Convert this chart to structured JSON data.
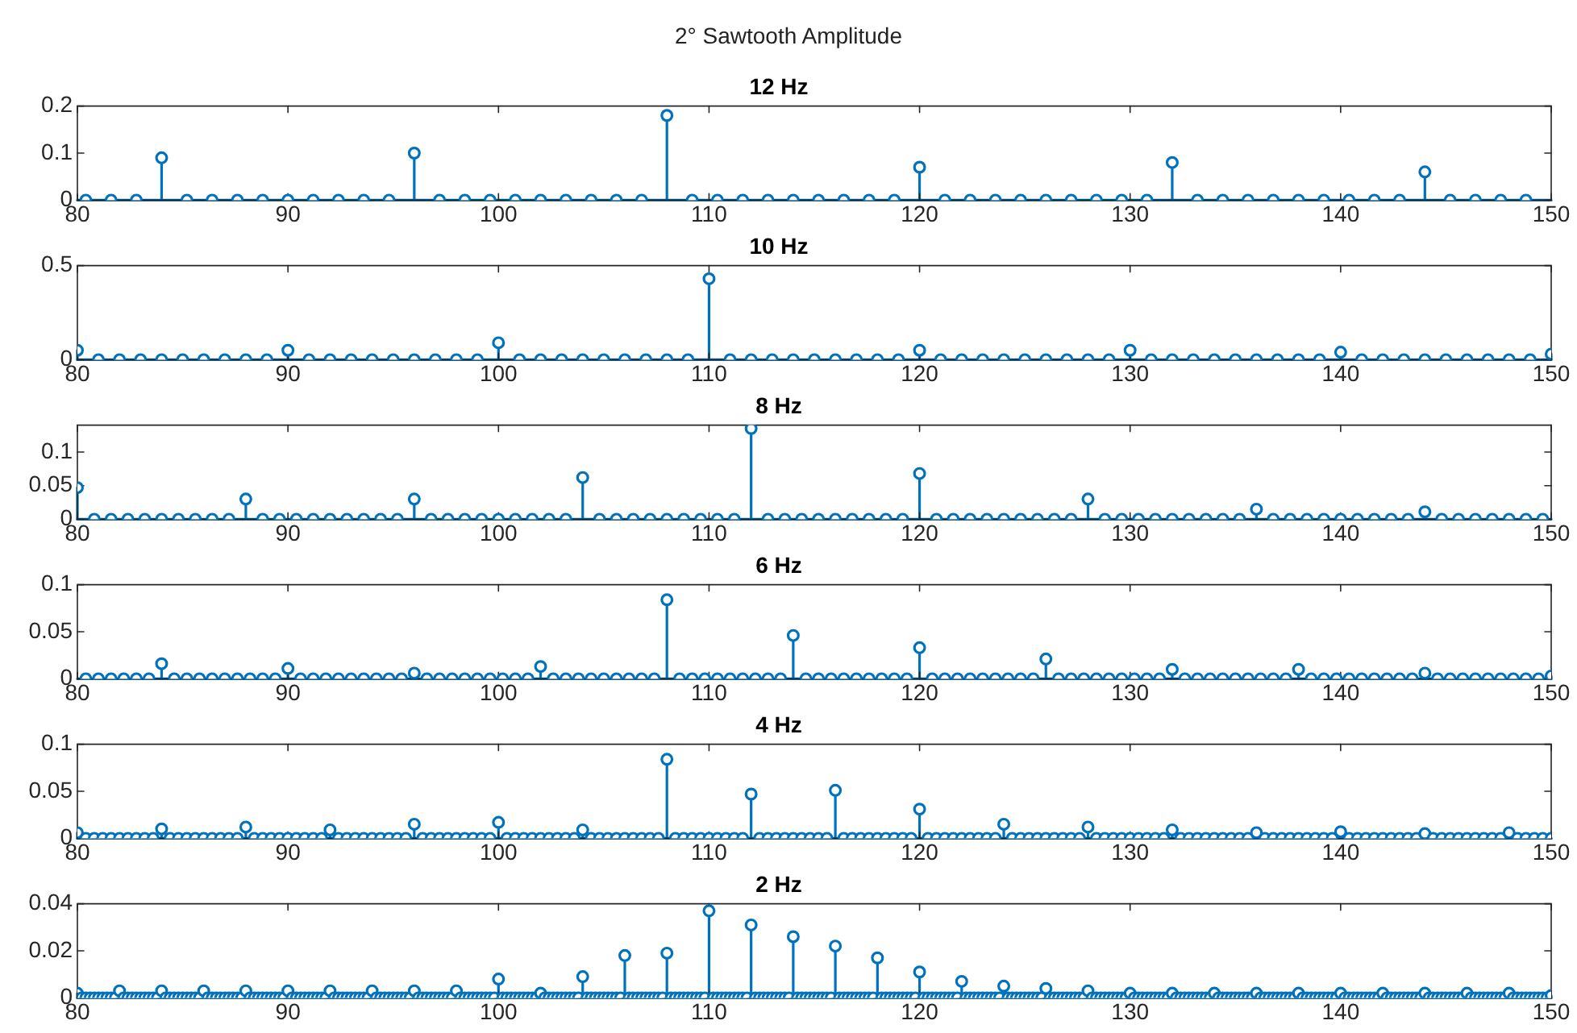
{
  "chart_data": [
    {
      "type": "lollipop",
      "title": "12 Hz",
      "annotations": [
        "2° Sawtooth Amplitude"
      ],
      "color": "#0072bd",
      "marker": "circle",
      "xlim": [
        80,
        150
      ],
      "xticks": [
        80,
        90,
        100,
        110,
        120,
        130,
        140,
        150
      ],
      "ylim": [
        0,
        0.2
      ],
      "yticks": [
        0,
        0.1,
        0.2
      ],
      "x": [
        80.4,
        81.6,
        82.8,
        84,
        85.2,
        86.4,
        87.6,
        88.8,
        90,
        91.2,
        92.4,
        93.6,
        94.8,
        96,
        97.2,
        98.4,
        99.6,
        100.8,
        102,
        103.2,
        104.4,
        105.6,
        106.8,
        108,
        109.2,
        110.4,
        111.6,
        112.8,
        114,
        115.2,
        116.4,
        117.6,
        118.8,
        120,
        121.2,
        122.4,
        123.6,
        124.8,
        126,
        127.2,
        128.4,
        129.6,
        130.8,
        132,
        133.2,
        134.4,
        135.6,
        136.8,
        138,
        139.2,
        140.4,
        141.6,
        142.8,
        144,
        145.2,
        146.4,
        147.6,
        148.8
      ],
      "values": [
        0,
        0,
        0,
        0.09,
        0,
        0,
        0,
        0,
        0,
        0,
        0,
        0,
        0,
        0.1,
        0,
        0,
        0,
        0,
        0,
        0,
        0,
        0,
        0,
        0.18,
        0,
        0,
        0,
        0,
        0,
        0,
        0,
        0,
        0,
        0.07,
        0,
        0,
        0,
        0,
        0,
        0,
        0,
        0,
        0,
        0.08,
        0,
        0,
        0,
        0,
        0,
        0,
        0,
        0,
        0,
        0.06,
        0,
        0,
        0,
        0
      ]
    },
    {
      "type": "lollipop",
      "title": "10 Hz",
      "color": "#0072bd",
      "marker": "circle",
      "xlim": [
        80,
        150
      ],
      "xticks": [
        80,
        90,
        100,
        110,
        120,
        130,
        140,
        150
      ],
      "ylim": [
        0,
        0.5
      ],
      "yticks": [
        0,
        0.5
      ],
      "x": [
        80,
        81,
        82,
        83,
        84,
        85,
        86,
        87,
        88,
        89,
        90,
        91,
        92,
        93,
        94,
        95,
        96,
        97,
        98,
        99,
        100,
        101,
        102,
        103,
        104,
        105,
        106,
        107,
        108,
        109,
        110,
        111,
        112,
        113,
        114,
        115,
        116,
        117,
        118,
        119,
        120,
        121,
        122,
        123,
        124,
        125,
        126,
        127,
        128,
        129,
        130,
        131,
        132,
        133,
        134,
        135,
        136,
        137,
        138,
        139,
        140,
        141,
        142,
        143,
        144,
        145,
        146,
        147,
        148,
        149,
        150
      ],
      "values": [
        0.05,
        0,
        0,
        0,
        0,
        0,
        0,
        0,
        0,
        0,
        0.05,
        0,
        0,
        0,
        0,
        0,
        0,
        0,
        0,
        0,
        0.09,
        0,
        0,
        0,
        0,
        0,
        0,
        0,
        0,
        0,
        0.43,
        0,
        0,
        0,
        0,
        0,
        0,
        0,
        0,
        0,
        0.05,
        0,
        0,
        0,
        0,
        0,
        0,
        0,
        0,
        0,
        0.05,
        0,
        0,
        0,
        0,
        0,
        0,
        0,
        0,
        0,
        0.04,
        0,
        0,
        0,
        0,
        0,
        0,
        0,
        0,
        0,
        0.03
      ]
    },
    {
      "type": "lollipop",
      "title": "8 Hz",
      "color": "#0072bd",
      "marker": "circle",
      "xlim": [
        80,
        150
      ],
      "xticks": [
        80,
        90,
        100,
        110,
        120,
        130,
        140,
        150
      ],
      "ylim": [
        0,
        0.14
      ],
      "yticks": [
        0,
        0.05,
        0.1
      ],
      "x": [
        80,
        80.8,
        81.6,
        82.4,
        83.2,
        84,
        84.8,
        85.6,
        86.4,
        87.2,
        88,
        88.8,
        89.6,
        90.4,
        91.2,
        92,
        92.8,
        93.6,
        94.4,
        95.2,
        96,
        96.8,
        97.6,
        98.4,
        99.2,
        100,
        100.8,
        101.6,
        102.4,
        103.2,
        104,
        104.8,
        105.6,
        106.4,
        107.2,
        108,
        108.8,
        109.6,
        110.4,
        111.2,
        112,
        112.8,
        113.6,
        114.4,
        115.2,
        116,
        116.8,
        117.6,
        118.4,
        119.2,
        120,
        120.8,
        121.6,
        122.4,
        123.2,
        124,
        124.8,
        125.6,
        126.4,
        127.2,
        128,
        128.8,
        129.6,
        130.4,
        131.2,
        132,
        132.8,
        133.6,
        134.4,
        135.2,
        136,
        136.8,
        137.6,
        138.4,
        139.2,
        140,
        140.8,
        141.6,
        142.4,
        143.2,
        144,
        144.8,
        145.6,
        146.4,
        147.2,
        148,
        148.8,
        149.6
      ],
      "values": [
        0.047,
        0,
        0,
        0,
        0,
        0,
        0,
        0,
        0,
        0,
        0.03,
        0,
        0,
        0,
        0,
        0,
        0,
        0,
        0,
        0,
        0.03,
        0,
        0,
        0,
        0,
        0,
        0,
        0,
        0,
        0,
        0.062,
        0,
        0,
        0,
        0,
        0,
        0,
        0,
        0,
        0,
        0.135,
        0,
        0,
        0,
        0,
        0,
        0,
        0,
        0,
        0,
        0.068,
        0,
        0,
        0,
        0,
        0,
        0,
        0,
        0,
        0,
        0.03,
        0,
        0,
        0,
        0,
        0,
        0,
        0,
        0,
        0,
        0.015,
        0,
        0,
        0,
        0,
        0,
        0,
        0,
        0,
        0,
        0.011,
        0,
        0,
        0,
        0,
        0,
        0,
        0
      ]
    },
    {
      "type": "lollipop",
      "title": "6 Hz",
      "color": "#0072bd",
      "marker": "circle",
      "xlim": [
        80,
        150
      ],
      "xticks": [
        80,
        90,
        100,
        110,
        120,
        130,
        140,
        150
      ],
      "ylim": [
        0,
        0.1
      ],
      "yticks": [
        0,
        0.05,
        0.1
      ],
      "x": [
        80.4,
        81,
        81.6,
        82.2,
        82.8,
        83.4,
        84,
        84.6,
        85.2,
        85.8,
        86.4,
        87,
        87.6,
        88.2,
        88.8,
        89.4,
        90,
        90.6,
        91.2,
        91.8,
        92.4,
        93,
        93.6,
        94.2,
        94.8,
        95.4,
        96,
        96.6,
        97.2,
        97.8,
        98.4,
        99,
        99.6,
        100.2,
        100.8,
        101.4,
        102,
        102.6,
        103.2,
        103.8,
        104.4,
        105,
        105.6,
        106.2,
        106.8,
        107.4,
        108,
        108.6,
        109.2,
        109.8,
        110.4,
        111,
        111.6,
        112.2,
        112.8,
        113.4,
        114,
        114.6,
        115.2,
        115.8,
        116.4,
        117,
        117.6,
        118.2,
        118.8,
        119.4,
        120,
        120.6,
        121.2,
        121.8,
        122.4,
        123,
        123.6,
        124.2,
        124.8,
        125.4,
        126,
        126.6,
        127.2,
        127.8,
        128.4,
        129,
        129.6,
        130.2,
        130.8,
        131.4,
        132,
        132.6,
        133.2,
        133.8,
        134.4,
        135,
        135.6,
        136.2,
        136.8,
        137.4,
        138,
        138.6,
        139.2,
        139.8,
        140.4,
        141,
        141.6,
        142.2,
        142.8,
        143.4,
        144,
        144.6,
        145.2,
        145.8,
        146.4,
        147,
        147.6,
        148.2,
        148.8,
        149.4,
        150
      ],
      "values": [
        0,
        0,
        0,
        0,
        0,
        0,
        0.016,
        0,
        0,
        0,
        0,
        0,
        0,
        0,
        0,
        0,
        0.011,
        0,
        0,
        0,
        0,
        0,
        0,
        0,
        0,
        0,
        0.006,
        0,
        0,
        0,
        0,
        0,
        0,
        0,
        0,
        0,
        0.013,
        0,
        0,
        0,
        0,
        0,
        0,
        0,
        0,
        0,
        0.084,
        0,
        0,
        0,
        0,
        0,
        0,
        0,
        0,
        0,
        0.046,
        0,
        0,
        0,
        0,
        0,
        0,
        0,
        0,
        0,
        0.033,
        0,
        0,
        0,
        0,
        0,
        0,
        0,
        0,
        0,
        0.021,
        0,
        0,
        0,
        0,
        0,
        0,
        0,
        0,
        0,
        0.01,
        0,
        0,
        0,
        0,
        0,
        0,
        0,
        0,
        0,
        0.01,
        0,
        0,
        0,
        0,
        0,
        0,
        0,
        0,
        0,
        0.006,
        0,
        0,
        0,
        0,
        0,
        0,
        0,
        0,
        0,
        0.003
      ]
    },
    {
      "type": "lollipop",
      "title": "4 Hz",
      "color": "#0072bd",
      "marker": "circle",
      "xlim": [
        80,
        150
      ],
      "xticks": [
        80,
        90,
        100,
        110,
        120,
        130,
        140,
        150
      ],
      "ylim": [
        0,
        0.1
      ],
      "yticks": [
        0,
        0.05,
        0.1
      ],
      "x": [
        80,
        80.4,
        80.8,
        81.2,
        81.6,
        82,
        82.4,
        82.8,
        83.2,
        83.6,
        84,
        84.4,
        84.8,
        85.2,
        85.6,
        86,
        86.4,
        86.8,
        87.2,
        87.6,
        88,
        88.4,
        88.8,
        89.2,
        89.6,
        90,
        90.4,
        90.8,
        91.2,
        91.6,
        92,
        92.4,
        92.8,
        93.2,
        93.6,
        94,
        94.4,
        94.8,
        95.2,
        95.6,
        96,
        96.4,
        96.8,
        97.2,
        97.6,
        98,
        98.4,
        98.8,
        99.2,
        99.6,
        100,
        100.4,
        100.8,
        101.2,
        101.6,
        102,
        102.4,
        102.8,
        103.2,
        103.6,
        104,
        104.4,
        104.8,
        105.2,
        105.6,
        106,
        106.4,
        106.8,
        107.2,
        107.6,
        108,
        108.4,
        108.8,
        109.2,
        109.6,
        110,
        110.4,
        110.8,
        111.2,
        111.6,
        112,
        112.4,
        112.8,
        113.2,
        113.6,
        114,
        114.4,
        114.8,
        115.2,
        115.6,
        116,
        116.4,
        116.8,
        117.2,
        117.6,
        118,
        118.4,
        118.8,
        119.2,
        119.6,
        120,
        120.4,
        120.8,
        121.2,
        121.6,
        122,
        122.4,
        122.8,
        123.2,
        123.6,
        124,
        124.4,
        124.8,
        125.2,
        125.6,
        126,
        126.4,
        126.8,
        127.2,
        127.6,
        128,
        128.4,
        128.8,
        129.2,
        129.6,
        130,
        130.4,
        130.8,
        131.2,
        131.6,
        132,
        132.4,
        132.8,
        133.2,
        133.6,
        134,
        134.4,
        134.8,
        135.2,
        135.6,
        136,
        136.4,
        136.8,
        137.2,
        137.6,
        138,
        138.4,
        138.8,
        139.2,
        139.6,
        140,
        140.4,
        140.8,
        141.2,
        141.6,
        142,
        142.4,
        142.8,
        143.2,
        143.6,
        144,
        144.4,
        144.8,
        145.2,
        145.6,
        146,
        146.4,
        146.8,
        147.2,
        147.6,
        148,
        148.4,
        148.8,
        149.2,
        149.6,
        150
      ],
      "values": [
        0.006,
        0,
        0,
        0,
        0,
        0,
        0,
        0,
        0,
        0,
        0.01,
        0,
        0,
        0,
        0,
        0,
        0,
        0,
        0,
        0,
        0.012,
        0,
        0,
        0,
        0,
        0,
        0,
        0,
        0,
        0,
        0.009,
        0,
        0,
        0,
        0,
        0,
        0,
        0,
        0,
        0,
        0.015,
        0,
        0,
        0,
        0,
        0,
        0,
        0,
        0,
        0,
        0.017,
        0,
        0,
        0,
        0,
        0,
        0,
        0,
        0,
        0,
        0.009,
        0,
        0,
        0,
        0,
        0,
        0,
        0,
        0,
        0,
        0.084,
        0,
        0,
        0,
        0,
        0,
        0,
        0,
        0,
        0,
        0.047,
        0,
        0,
        0,
        0,
        0,
        0,
        0,
        0,
        0,
        0.051,
        0,
        0,
        0,
        0,
        0,
        0,
        0,
        0,
        0,
        0.031,
        0,
        0,
        0,
        0,
        0,
        0,
        0,
        0,
        0,
        0.015,
        0,
        0,
        0,
        0,
        0,
        0,
        0,
        0,
        0,
        0.012,
        0,
        0,
        0,
        0,
        0,
        0,
        0,
        0,
        0,
        0.009,
        0,
        0,
        0,
        0,
        0,
        0,
        0,
        0,
        0,
        0.006,
        0,
        0,
        0,
        0,
        0,
        0,
        0,
        0,
        0,
        0.007,
        0,
        0,
        0,
        0,
        0,
        0,
        0,
        0,
        0,
        0.005,
        0,
        0,
        0,
        0,
        0,
        0,
        0,
        0,
        0,
        0.006,
        0,
        0,
        0,
        0,
        0
      ]
    },
    {
      "type": "lollipop",
      "title": "2 Hz",
      "color": "#0072bd",
      "marker": "circle",
      "xlim": [
        80,
        150
      ],
      "xticks": [
        80,
        90,
        100,
        110,
        120,
        130,
        140,
        150
      ],
      "ylim": [
        0,
        0.04
      ],
      "yticks": [
        0,
        0.02,
        0.04
      ],
      "x": [
        80,
        80.2,
        80.4,
        80.6,
        80.8,
        81,
        81.2,
        81.4,
        81.6,
        81.8,
        82,
        82.2,
        82.4,
        82.6,
        82.8,
        83,
        83.2,
        83.4,
        83.6,
        83.8,
        84,
        84.2,
        84.4,
        84.6,
        84.8,
        85,
        85.2,
        85.4,
        85.6,
        85.8,
        86,
        86.2,
        86.4,
        86.6,
        86.8,
        87,
        87.2,
        87.4,
        87.6,
        87.8,
        88,
        88.2,
        88.4,
        88.6,
        88.8,
        89,
        89.2,
        89.4,
        89.6,
        89.8,
        90,
        90.2,
        90.4,
        90.6,
        90.8,
        91,
        91.2,
        91.4,
        91.6,
        91.8,
        92,
        92.2,
        92.4,
        92.6,
        92.8,
        93,
        93.2,
        93.4,
        93.6,
        93.8,
        94,
        94.2,
        94.4,
        94.6,
        94.8,
        95,
        95.2,
        95.4,
        95.6,
        95.8,
        96,
        96.2,
        96.4,
        96.6,
        96.8,
        97,
        97.2,
        97.4,
        97.6,
        97.8,
        98,
        98.2,
        98.4,
        98.6,
        98.8,
        99,
        99.2,
        99.4,
        99.6,
        99.8,
        100,
        100.2,
        100.4,
        100.6,
        100.8,
        101,
        101.2,
        101.4,
        101.6,
        101.8,
        102,
        102.2,
        102.4,
        102.6,
        102.8,
        103,
        103.2,
        103.4,
        103.6,
        103.8,
        104,
        104.2,
        104.4,
        104.6,
        104.8,
        105,
        105.2,
        105.4,
        105.6,
        105.8,
        106,
        106.2,
        106.4,
        106.6,
        106.8,
        107,
        107.2,
        107.4,
        107.6,
        107.8,
        108,
        108.2,
        108.4,
        108.6,
        108.8,
        109,
        109.2,
        109.4,
        109.6,
        109.8,
        110,
        110.2,
        110.4,
        110.6,
        110.8,
        111,
        111.2,
        111.4,
        111.6,
        111.8,
        112,
        112.2,
        112.4,
        112.6,
        112.8,
        113,
        113.2,
        113.4,
        113.6,
        113.8,
        114,
        114.2,
        114.4,
        114.6,
        114.8,
        115,
        115.2,
        115.4,
        115.6,
        115.8,
        116,
        116.2,
        116.4,
        116.6,
        116.8,
        117,
        117.2,
        117.4,
        117.6,
        117.8,
        118,
        118.2,
        118.4,
        118.6,
        118.8,
        119,
        119.2,
        119.4,
        119.6,
        119.8,
        120,
        120.2,
        120.4,
        120.6,
        120.8,
        121,
        121.2,
        121.4,
        121.6,
        121.8,
        122,
        122.2,
        122.4,
        122.6,
        122.8,
        123,
        123.2,
        123.4,
        123.6,
        123.8,
        124,
        124.2,
        124.4,
        124.6,
        124.8,
        125,
        125.2,
        125.4,
        125.6,
        125.8,
        126,
        126.2,
        126.4,
        126.6,
        126.8,
        127,
        127.2,
        127.4,
        127.6,
        127.8,
        128,
        128.2,
        128.4,
        128.6,
        128.8,
        129,
        129.2,
        129.4,
        129.6,
        129.8,
        130,
        130.2,
        130.4,
        130.6,
        130.8,
        131,
        131.2,
        131.4,
        131.6,
        131.8,
        132,
        132.2,
        132.4,
        132.6,
        132.8,
        133,
        133.2,
        133.4,
        133.6,
        133.8,
        134,
        134.2,
        134.4,
        134.6,
        134.8,
        135,
        135.2,
        135.4,
        135.6,
        135.8,
        136,
        136.2,
        136.4,
        136.6,
        136.8,
        137,
        137.2,
        137.4,
        137.6,
        137.8,
        138,
        138.2,
        138.4,
        138.6,
        138.8,
        139,
        139.2,
        139.4,
        139.6,
        139.8,
        140,
        140.2,
        140.4,
        140.6,
        140.8,
        141,
        141.2,
        141.4,
        141.6,
        141.8,
        142,
        142.2,
        142.4,
        142.6,
        142.8,
        143,
        143.2,
        143.4,
        143.6,
        143.8,
        144,
        144.2,
        144.4,
        144.6,
        144.8,
        145,
        145.2,
        145.4,
        145.6,
        145.8,
        146,
        146.2,
        146.4,
        146.6,
        146.8,
        147,
        147.2,
        147.4,
        147.6,
        147.8,
        148,
        148.2,
        148.4,
        148.6,
        148.8,
        149,
        149.2,
        149.4,
        149.6,
        149.8,
        150
      ],
      "values": [
        0.002,
        0,
        0,
        0,
        0,
        0,
        0,
        0,
        0,
        0,
        0.003,
        0,
        0,
        0,
        0,
        0,
        0,
        0,
        0,
        0,
        0.003,
        0,
        0,
        0,
        0,
        0,
        0,
        0,
        0,
        0,
        0.003,
        0,
        0,
        0,
        0,
        0,
        0,
        0,
        0,
        0,
        0.003,
        0,
        0,
        0,
        0,
        0,
        0,
        0,
        0,
        0,
        0.003,
        0,
        0,
        0,
        0,
        0,
        0,
        0,
        0,
        0,
        0.003,
        0,
        0,
        0,
        0,
        0,
        0,
        0,
        0,
        0,
        0.003,
        0,
        0,
        0,
        0,
        0,
        0,
        0,
        0,
        0,
        0.003,
        0,
        0,
        0,
        0,
        0,
        0,
        0,
        0,
        0,
        0.003,
        0,
        0,
        0,
        0,
        0,
        0,
        0,
        0,
        0,
        0.008,
        0,
        0,
        0,
        0,
        0,
        0,
        0,
        0,
        0,
        0.002,
        0,
        0,
        0,
        0,
        0,
        0,
        0,
        0,
        0,
        0.009,
        0,
        0,
        0,
        0,
        0,
        0,
        0,
        0,
        0,
        0.018,
        0,
        0,
        0,
        0,
        0,
        0,
        0,
        0,
        0,
        0.019,
        0,
        0,
        0,
        0,
        0,
        0,
        0,
        0,
        0,
        0.037,
        0,
        0,
        0,
        0,
        0,
        0,
        0,
        0,
        0,
        0.031,
        0,
        0,
        0,
        0,
        0,
        0,
        0,
        0,
        0,
        0.026,
        0,
        0,
        0,
        0,
        0,
        0,
        0,
        0,
        0,
        0.022,
        0,
        0,
        0,
        0,
        0,
        0,
        0,
        0,
        0,
        0.017,
        0,
        0,
        0,
        0,
        0,
        0,
        0,
        0,
        0,
        0.011,
        0,
        0,
        0,
        0,
        0,
        0,
        0,
        0,
        0,
        0.007,
        0,
        0,
        0,
        0,
        0,
        0,
        0,
        0,
        0,
        0.005,
        0,
        0,
        0,
        0,
        0,
        0,
        0,
        0,
        0,
        0.004,
        0,
        0,
        0,
        0,
        0,
        0,
        0,
        0,
        0,
        0.003,
        0,
        0,
        0,
        0,
        0,
        0,
        0,
        0,
        0,
        0.002,
        0,
        0,
        0,
        0,
        0,
        0,
        0,
        0,
        0,
        0.002,
        0,
        0,
        0,
        0,
        0,
        0,
        0,
        0,
        0,
        0.002,
        0,
        0,
        0,
        0,
        0,
        0,
        0,
        0,
        0,
        0.002,
        0,
        0,
        0,
        0,
        0,
        0,
        0,
        0,
        0,
        0.002,
        0,
        0,
        0,
        0,
        0,
        0,
        0,
        0,
        0,
        0.002,
        0,
        0,
        0,
        0,
        0,
        0,
        0,
        0,
        0,
        0.002,
        0,
        0,
        0,
        0,
        0,
        0,
        0,
        0,
        0,
        0.002,
        0,
        0,
        0,
        0,
        0,
        0,
        0,
        0,
        0,
        0.002,
        0,
        0,
        0,
        0,
        0,
        0,
        0,
        0,
        0,
        0.002,
        0,
        0,
        0,
        0,
        0,
        0,
        0,
        0,
        0,
        0.001
      ]
    }
  ]
}
